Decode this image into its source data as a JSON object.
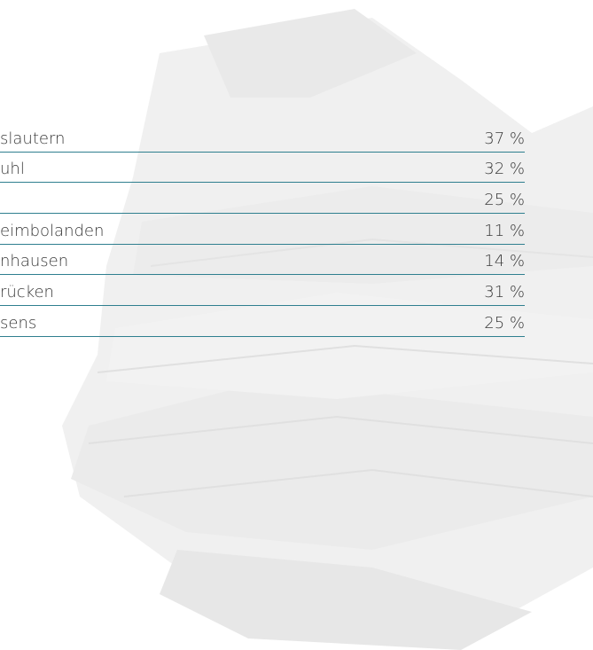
{
  "table": {
    "rows": [
      {
        "label": "slautern",
        "value": "37 %"
      },
      {
        "label": "uhl",
        "value": "32 %"
      },
      {
        "value": "25 %"
      },
      {
        "label": "eimbolanden",
        "value": "11 %"
      },
      {
        "label": "nhausen",
        "value": "14 %"
      },
      {
        "label": "rücken",
        "value": "31 %"
      },
      {
        "label": "sens",
        "value": "25 %"
      }
    ]
  }
}
